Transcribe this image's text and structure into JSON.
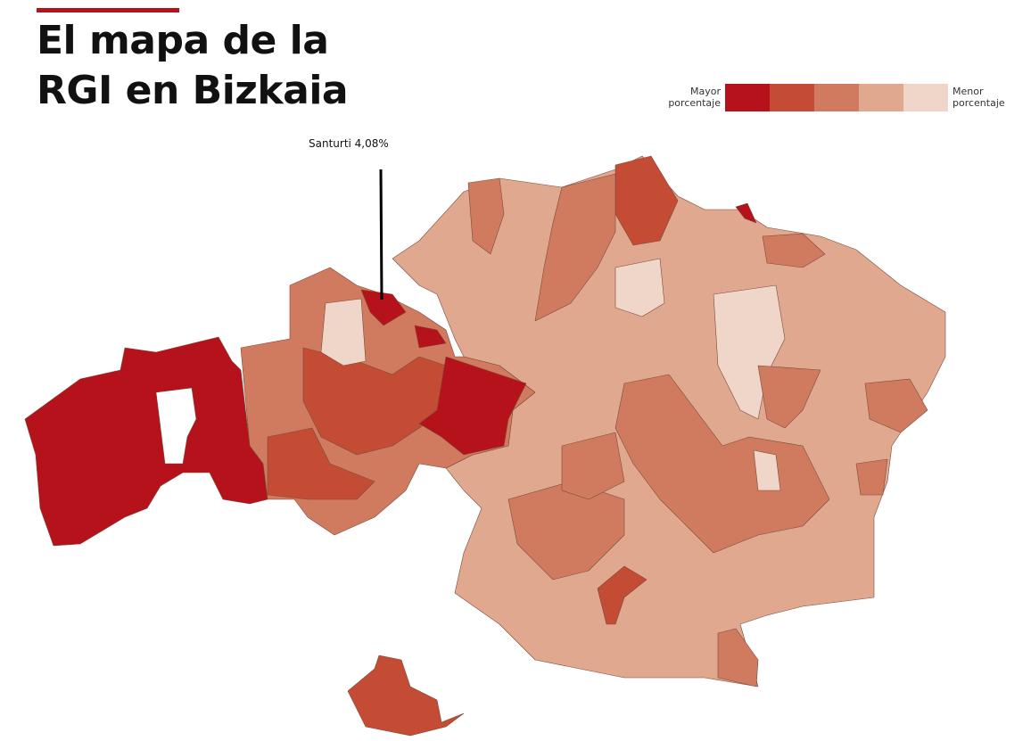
{
  "header": {
    "title_lines": [
      "El mapa de la",
      "RGI en Bizkaia"
    ]
  },
  "legend": {
    "high_lines": [
      "Mayor",
      "porcentaje"
    ],
    "low_lines": [
      "Menor",
      "porcentaje"
    ]
  },
  "annotation": {
    "label": "Santurti 4,08%"
  }
}
